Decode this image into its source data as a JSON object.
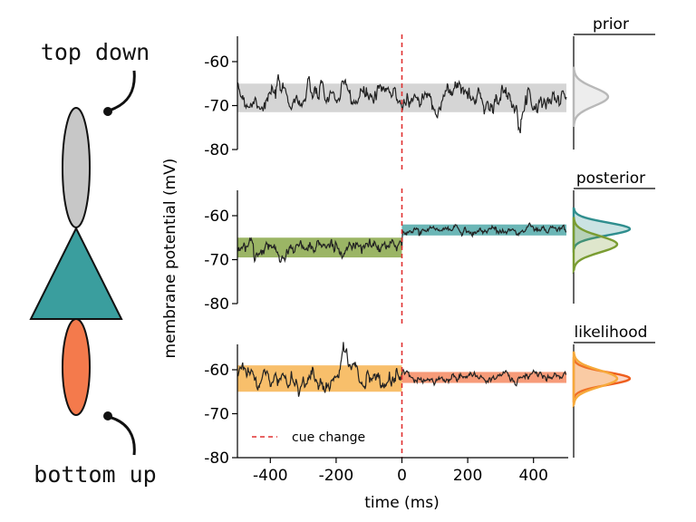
{
  "labels": {
    "top": "top down",
    "bottom": "bottom up"
  },
  "colors": {
    "gray": "#c7c7c7",
    "teal": "#3a9e9e",
    "orange": "#f47a4c",
    "green": "#7a9c32",
    "yellow_orange": "#f6a93a",
    "cue": "#e03030",
    "trace": "#222222"
  },
  "chart_data": {
    "type": "line",
    "xlabel": "time (ms)",
    "ylabel": "membrane potential (mV)",
    "xlim": [
      -500,
      500
    ],
    "ylim": [
      -80,
      -55
    ],
    "xticks": [
      "-400",
      "-200",
      "0",
      "200",
      "400"
    ],
    "yticks": [
      "-60",
      "-70",
      "-80"
    ],
    "cue": {
      "x": 0,
      "label": "cue change"
    },
    "panels": [
      {
        "name": "prior",
        "bands": [
          {
            "x": [
              -500,
              500
            ],
            "y": [
              -71.5,
              -65
            ],
            "color": "#c7c7c7"
          }
        ],
        "density_peaks": [
          {
            "mean": -68,
            "color": "#b8b8b8"
          }
        ]
      },
      {
        "name": "posterior",
        "bands": [
          {
            "x": [
              -500,
              0
            ],
            "y": [
              -69.5,
              -65
            ],
            "color": "#7a9c32"
          },
          {
            "x": [
              0,
              500
            ],
            "y": [
              -64.5,
              -62
            ],
            "color": "#3a9e9e"
          }
        ],
        "density_peaks": [
          {
            "mean": -63,
            "color": "#2f8e8e"
          },
          {
            "mean": -66.5,
            "color": "#7a9c32"
          }
        ]
      },
      {
        "name": "likelihood",
        "bands": [
          {
            "x": [
              -500,
              0
            ],
            "y": [
              -65,
              -59
            ],
            "color": "#f6a93a"
          },
          {
            "x": [
              0,
              500
            ],
            "y": [
              -63,
              -60.5
            ],
            "color": "#f47a4c"
          }
        ],
        "density_peaks": [
          {
            "mean": -62,
            "color": "#ee5e1e"
          },
          {
            "mean": -62,
            "color": "#f6a93a"
          }
        ]
      }
    ]
  }
}
